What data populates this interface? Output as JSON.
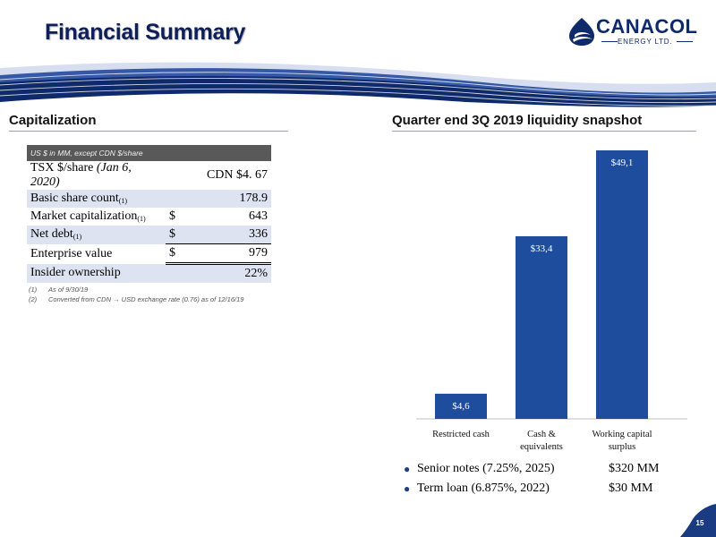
{
  "header": {
    "title": "Financial Summary",
    "logo_name": "CANACOL",
    "logo_subtitle": "ENERGY LTD."
  },
  "left": {
    "heading": "Capitalization",
    "table_header": "US $ in MM, except CDN $/share",
    "rows": [
      {
        "label_main": "TSX $/share",
        "label_italic": " (Jan 6, 2020)",
        "footnote": "",
        "currency": "",
        "value": "CDN $4. 67"
      },
      {
        "label_main": "Basic share count",
        "label_italic": "",
        "footnote": "(1)",
        "currency": "",
        "value": "178.9"
      },
      {
        "label_main": "Market capitalization",
        "label_italic": "",
        "footnote": "(1)",
        "currency": "$",
        "value": "643"
      },
      {
        "label_main": "Net debt",
        "label_italic": "",
        "footnote": "(1)",
        "currency": "$",
        "value": "336"
      },
      {
        "label_main": "Enterprise value",
        "label_italic": "",
        "footnote": "",
        "currency": "$",
        "value": "979"
      },
      {
        "label_main": "Insider ownership",
        "label_italic": "",
        "footnote": "",
        "currency": "",
        "value": "22%"
      }
    ],
    "footnotes": [
      {
        "num": "(1)",
        "text": "As of 9/30/19"
      },
      {
        "num": "(2)",
        "text": "Converted from CDN → USD exchange rate (0.76) as of 12/16/19"
      }
    ]
  },
  "right": {
    "heading": "Quarter end 3Q 2019 liquidity snapshot",
    "bullets": [
      {
        "label": "Senior notes (7.25%, 2025)",
        "amount": "$320 MM"
      },
      {
        "label": "Term loan (6.875%, 2022)",
        "amount": "$30 MM"
      }
    ]
  },
  "chart_data": {
    "type": "bar",
    "title": "",
    "categories": [
      "Restricted cash",
      "Cash & equivalents",
      "Working capital surplus"
    ],
    "category_lines": [
      [
        "Restricted cash"
      ],
      [
        "Cash &",
        "equivalents"
      ],
      [
        "Working capital",
        "surplus"
      ]
    ],
    "values": [
      4.6,
      33.4,
      49.1
    ],
    "value_labels": [
      "$4,6",
      "$33,4",
      "$49,1"
    ],
    "xlabel": "",
    "ylabel": "",
    "ylim": [
      0,
      49.1
    ],
    "grid": false,
    "bar_color": "#1f4d9e",
    "label_color": "#ffffff"
  },
  "page": {
    "number": "15"
  },
  "colors": {
    "brand_navy": "#0f1f5a",
    "bar": "#1f4d9e",
    "table_header_bg": "#595959",
    "row_shade": "#dde3f0",
    "badge": "#1a3a82"
  }
}
